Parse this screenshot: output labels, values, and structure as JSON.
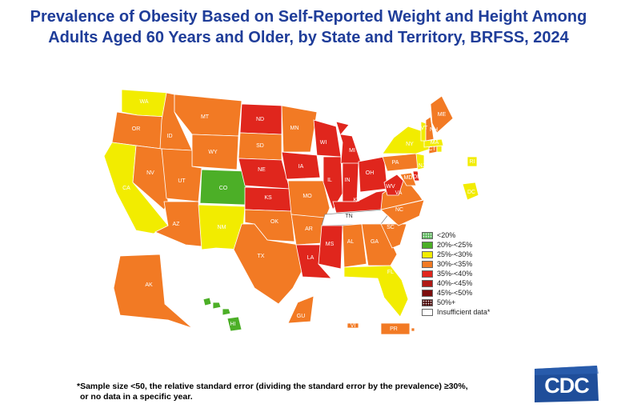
{
  "title_line1": "Prevalence of Obesity Based on Self-Reported Weight and Height Among",
  "title_line2": "Adults Aged 60 Years and Older, by State and Territory, BRFSS, 2024",
  "legend": [
    {
      "label": "<20%",
      "color": "#5cb85c",
      "pattern": "dotted"
    },
    {
      "label": "20%-<25%",
      "color": "#4caf27",
      "pattern": "solid"
    },
    {
      "label": "25%-<30%",
      "color": "#f2ec00",
      "pattern": "solid"
    },
    {
      "label": "30%-<35%",
      "color": "#f27a24",
      "pattern": "solid"
    },
    {
      "label": "35%-<40%",
      "color": "#e0261d",
      "pattern": "solid"
    },
    {
      "label": "40%-<45%",
      "color": "#b01a16",
      "pattern": "solid"
    },
    {
      "label": "45%-<50%",
      "color": "#7d0e0e",
      "pattern": "solid"
    },
    {
      "label": "50%+",
      "color": "#4a0707",
      "pattern": "dotted"
    },
    {
      "label": "Insufficient data*",
      "color": "#ffffff",
      "pattern": "solid"
    }
  ],
  "states": [
    {
      "abbr": "WA",
      "category": "25%-<30%"
    },
    {
      "abbr": "OR",
      "category": "30%-<35%"
    },
    {
      "abbr": "CA",
      "category": "25%-<30%"
    },
    {
      "abbr": "ID",
      "category": "30%-<35%"
    },
    {
      "abbr": "NV",
      "category": "30%-<35%"
    },
    {
      "abbr": "MT",
      "category": "30%-<35%"
    },
    {
      "abbr": "WY",
      "category": "30%-<35%"
    },
    {
      "abbr": "UT",
      "category": "30%-<35%"
    },
    {
      "abbr": "AZ",
      "category": "30%-<35%"
    },
    {
      "abbr": "CO",
      "category": "20%-<25%"
    },
    {
      "abbr": "NM",
      "category": "25%-<30%"
    },
    {
      "abbr": "ND",
      "category": "35%-<40%"
    },
    {
      "abbr": "SD",
      "category": "30%-<35%"
    },
    {
      "abbr": "NE",
      "category": "35%-<40%"
    },
    {
      "abbr": "KS",
      "category": "35%-<40%"
    },
    {
      "abbr": "OK",
      "category": "30%-<35%"
    },
    {
      "abbr": "TX",
      "category": "30%-<35%"
    },
    {
      "abbr": "MN",
      "category": "30%-<35%"
    },
    {
      "abbr": "IA",
      "category": "35%-<40%"
    },
    {
      "abbr": "MO",
      "category": "30%-<35%"
    },
    {
      "abbr": "AR",
      "category": "30%-<35%"
    },
    {
      "abbr": "LA",
      "category": "35%-<40%"
    },
    {
      "abbr": "WI",
      "category": "35%-<40%"
    },
    {
      "abbr": "IL",
      "category": "35%-<40%"
    },
    {
      "abbr": "MI",
      "category": "35%-<40%"
    },
    {
      "abbr": "IN",
      "category": "35%-<40%"
    },
    {
      "abbr": "OH",
      "category": "35%-<40%"
    },
    {
      "abbr": "KY",
      "category": "35%-<40%"
    },
    {
      "abbr": "TN",
      "category": "Insufficient data*"
    },
    {
      "abbr": "MS",
      "category": "35%-<40%"
    },
    {
      "abbr": "AL",
      "category": "30%-<35%"
    },
    {
      "abbr": "GA",
      "category": "30%-<35%"
    },
    {
      "abbr": "FL",
      "category": "25%-<30%"
    },
    {
      "abbr": "SC",
      "category": "30%-<35%"
    },
    {
      "abbr": "NC",
      "category": "30%-<35%"
    },
    {
      "abbr": "VA",
      "category": "30%-<35%"
    },
    {
      "abbr": "WV",
      "category": "35%-<40%"
    },
    {
      "abbr": "MD",
      "category": "30%-<35%"
    },
    {
      "abbr": "DE",
      "category": "35%-<40%"
    },
    {
      "abbr": "PA",
      "category": "30%-<35%"
    },
    {
      "abbr": "NJ",
      "category": "25%-<30%"
    },
    {
      "abbr": "NY",
      "category": "25%-<30%"
    },
    {
      "abbr": "CT",
      "category": "30%-<35%"
    },
    {
      "abbr": "RI",
      "category": "25%-<30%"
    },
    {
      "abbr": "MA",
      "category": "25%-<30%"
    },
    {
      "abbr": "VT",
      "category": "25%-<30%"
    },
    {
      "abbr": "NH",
      "category": "30%-<35%"
    },
    {
      "abbr": "ME",
      "category": "30%-<35%"
    },
    {
      "abbr": "DC",
      "category": "25%-<30%"
    },
    {
      "abbr": "AK",
      "category": "30%-<35%"
    },
    {
      "abbr": "HI",
      "category": "20%-<25%"
    },
    {
      "abbr": "GU",
      "category": "30%-<35%"
    },
    {
      "abbr": "VI",
      "category": "30%-<35%"
    },
    {
      "abbr": "PR",
      "category": "30%-<35%"
    }
  ],
  "footnote_line1": "*Sample size <50, the relative standard error (dividing the standard error by the prevalence) ≥30%,",
  "footnote_line2": "or no data in a specific year.",
  "logo_text": "CDC",
  "colors": {
    "title": "#1f3d99",
    "logo_bg": "#1f4e9a",
    "border": "#ffffff"
  }
}
